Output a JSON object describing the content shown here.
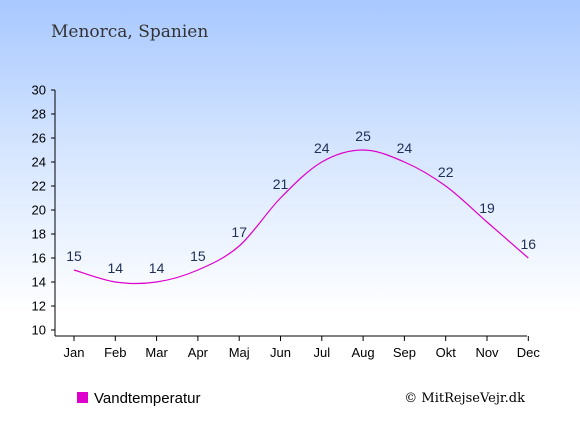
{
  "chart_data": {
    "type": "line",
    "title": "Menorca, Spanien",
    "categories": [
      "Jan",
      "Feb",
      "Mar",
      "Apr",
      "Maj",
      "Jun",
      "Jul",
      "Aug",
      "Sep",
      "Okt",
      "Nov",
      "Dec"
    ],
    "series": [
      {
        "name": "Vandtemperatur",
        "values": [
          15,
          14,
          14,
          15,
          17,
          21,
          24,
          25,
          24,
          22,
          19,
          16
        ],
        "color": "#dd00cc"
      }
    ],
    "ylim": [
      10,
      30
    ],
    "yticks": [
      10,
      12,
      14,
      16,
      18,
      20,
      22,
      24,
      26,
      28,
      30
    ],
    "grid": false,
    "legend": "bottom-left"
  },
  "copyright": "© MitRejseVejr.dk",
  "colors": {
    "background_top": "#a8c8ff",
    "background_bottom": "#ffffff",
    "line": "#dd00cc",
    "axis": "#000000",
    "data_label": "#1f2f55"
  }
}
